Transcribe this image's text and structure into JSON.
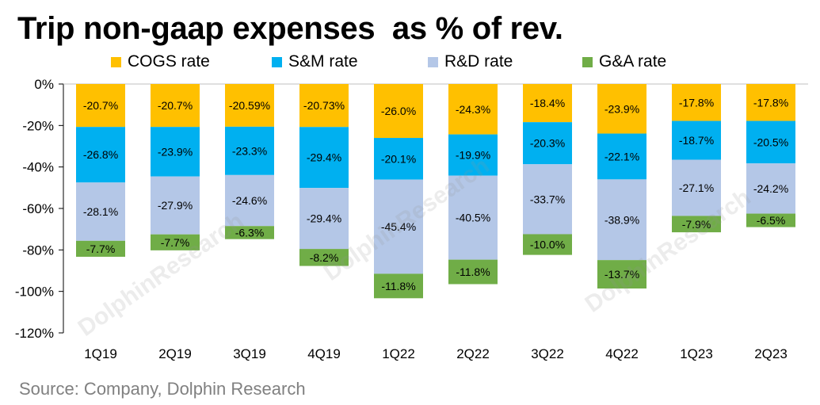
{
  "title": "Trip non-gaap expenses  as % of rev.",
  "source": "Source: Company, Dolphin Research",
  "watermark": "DolphinResearch",
  "colors": {
    "cogs": "#FFC000",
    "sm": "#00B0F0",
    "rd": "#B4C7E7",
    "ga": "#70AD47",
    "axis": "#000000",
    "grid": "#D9D9D9"
  },
  "chart_data": {
    "type": "bar",
    "stacked": true,
    "title": "Trip non-gaap expenses  as % of rev.",
    "categories": [
      "1Q19",
      "2Q19",
      "3Q19",
      "4Q19",
      "1Q22",
      "2Q22",
      "3Q22",
      "4Q22",
      "1Q23",
      "2Q23"
    ],
    "series": [
      {
        "name": "COGS rate",
        "key": "cogs",
        "values": [
          -20.7,
          -20.7,
          -20.59,
          -20.73,
          -26.0,
          -24.3,
          -18.4,
          -23.9,
          -17.8,
          -17.8
        ],
        "labels": [
          "-20.7%",
          "-20.7%",
          "-20.59%",
          "-20.73%",
          "-26.0%",
          "-24.3%",
          "-18.4%",
          "-23.9%",
          "-17.8%",
          "-17.8%"
        ]
      },
      {
        "name": "S&M rate",
        "key": "sm",
        "values": [
          -26.8,
          -23.9,
          -23.3,
          -29.4,
          -20.1,
          -19.9,
          -20.3,
          -22.1,
          -18.7,
          -20.5
        ],
        "labels": [
          "-26.8%",
          "-23.9%",
          "-23.3%",
          "-29.4%",
          "-20.1%",
          "-19.9%",
          "-20.3%",
          "-22.1%",
          "-18.7%",
          "-20.5%"
        ]
      },
      {
        "name": "R&D rate",
        "key": "rd",
        "values": [
          -28.1,
          -27.9,
          -24.6,
          -29.4,
          -45.4,
          -40.5,
          -33.7,
          -38.9,
          -27.1,
          -24.2
        ],
        "labels": [
          "-28.1%",
          "-27.9%",
          "-24.6%",
          "-29.4%",
          "-45.4%",
          "-40.5%",
          "-33.7%",
          "-38.9%",
          "-27.1%",
          "-24.2%"
        ]
      },
      {
        "name": "G&A rate",
        "key": "ga",
        "values": [
          -7.7,
          -7.7,
          -6.3,
          -8.2,
          -11.8,
          -11.8,
          -10.0,
          -13.7,
          -7.9,
          -6.5
        ],
        "labels": [
          "-7.7%",
          "-7.7%",
          "-6.3%",
          "-8.2%",
          "-11.8%",
          "-11.8%",
          "-10.0%",
          "-13.7%",
          "-7.9%",
          "-6.5%"
        ]
      }
    ],
    "ylim": [
      -120,
      0
    ],
    "yticks": [
      0,
      -20,
      -40,
      -60,
      -80,
      -100,
      -120
    ],
    "ytick_labels": [
      "0%",
      "-20%",
      "-40%",
      "-60%",
      "-80%",
      "-100%",
      "-120%"
    ],
    "legend": "top",
    "grid": false
  }
}
